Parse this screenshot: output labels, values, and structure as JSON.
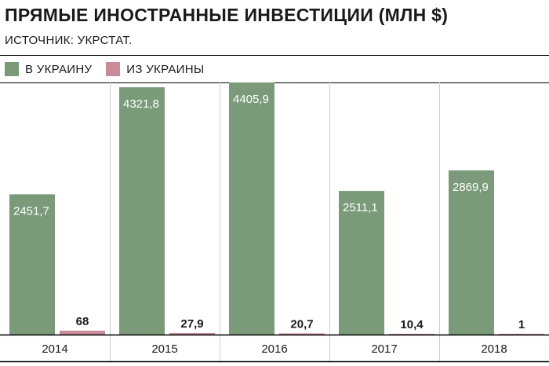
{
  "header": {
    "title": "ПРЯМЫЕ ИНОСТРАННЫЕ ИНВЕСТИЦИИ (МЛН $)",
    "source": "ИСТОЧНИК: УКРСТАТ."
  },
  "colors": {
    "series_in": "#7a9a7a",
    "series_out": "#c98a9a",
    "grid": "#cfcfcf",
    "axis": "#000000",
    "label_on_bar": "#ffffff",
    "label_above_bar": "#1a1a1a"
  },
  "legend": {
    "items": [
      {
        "label": "В УКРАИНУ",
        "color": "#7a9a7a"
      },
      {
        "label": "ИЗ УКРАИНЫ",
        "color": "#c98a9a"
      }
    ]
  },
  "chart_data": {
    "type": "bar",
    "title": "ПРЯМЫЕ ИНОСТРАННЫЕ ИНВЕСТИЦИИ (МЛН $)",
    "categories": [
      "2014",
      "2015",
      "2016",
      "2017",
      "2018"
    ],
    "series": [
      {
        "name": "В УКРАИНУ",
        "values": [
          2451.7,
          4321.8,
          4405.9,
          2511.1,
          2869.9
        ],
        "labels": [
          "2451,7",
          "4321,8",
          "4405,9",
          "2511,1",
          "2869,9"
        ]
      },
      {
        "name": "ИЗ УКРАИНЫ",
        "values": [
          68,
          27.9,
          20.7,
          10.4,
          1
        ],
        "labels": [
          "68",
          "27,9",
          "20,7",
          "10,4",
          "1"
        ]
      }
    ],
    "ylim": [
      0,
      4405.9
    ],
    "xlabel": "",
    "ylabel": "",
    "grid": true,
    "legend_position": "top-left"
  }
}
